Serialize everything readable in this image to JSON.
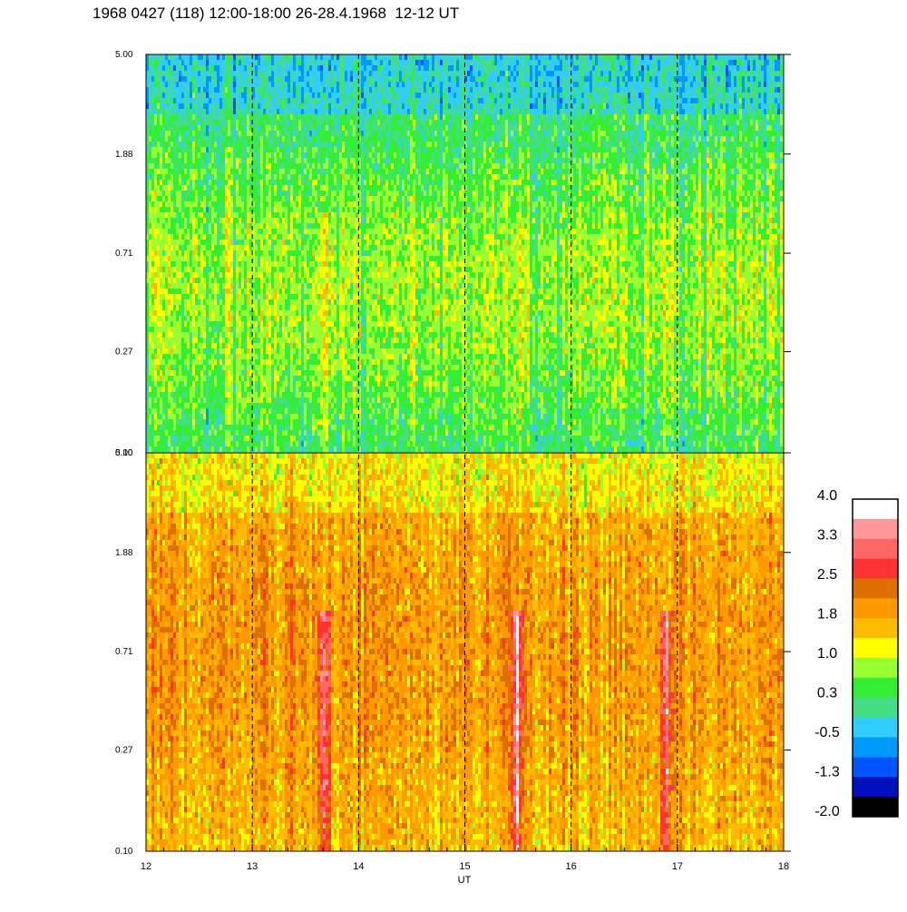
{
  "chart_data": {
    "type": "heatmap",
    "title": "1968 0427 (118) 12:00-18:00 26-28.4.1968  12-12 UT",
    "xlabel": "UT",
    "x_ticks": [
      "12",
      "13",
      "14",
      "15",
      "16",
      "17",
      "18"
    ],
    "xlim": [
      12,
      18
    ],
    "dashed_gridlines_x": [
      13,
      14,
      15,
      16,
      17
    ],
    "panels": [
      {
        "name": "top-panel",
        "y_ticks": [
          "5.00",
          "1.88",
          "0.71",
          "0.27",
          "0.10"
        ],
        "ylim": [
          0.1,
          5.0
        ],
        "y_scale": "log",
        "dominant_levels": "-0.5 to 1.4",
        "features": [
          {
            "x": 13.68,
            "level": 1.8
          },
          {
            "x": 15.5,
            "level": 1.4
          },
          {
            "x": 16.9,
            "level": 1.4
          }
        ]
      },
      {
        "name": "bottom-panel",
        "y_ticks": [
          "5.00",
          "1.88",
          "0.71",
          "0.27",
          "0.10"
        ],
        "ylim": [
          0.1,
          5.0
        ],
        "y_scale": "log",
        "dominant_levels": "1.0 to 2.5",
        "features": [
          {
            "x": 13.68,
            "level": 2.8
          },
          {
            "x": 15.5,
            "level": 2.8
          },
          {
            "x": 16.9,
            "level": 2.8
          }
        ]
      }
    ],
    "colorbar": {
      "labels": [
        "4.0",
        "3.3",
        "2.5",
        "1.8",
        "1.0",
        "0.3",
        "-0.5",
        "-1.3",
        "-2.0"
      ],
      "colors": [
        "#ffffff",
        "#ff9999",
        "#ff6666",
        "#ff3333",
        "#dd7000",
        "#ff9900",
        "#ffbb00",
        "#ffff00",
        "#99ff33",
        "#33ee33",
        "#44dd88",
        "#33ccff",
        "#0099ff",
        "#0055ff",
        "#0011bb",
        "#000000"
      ]
    }
  }
}
